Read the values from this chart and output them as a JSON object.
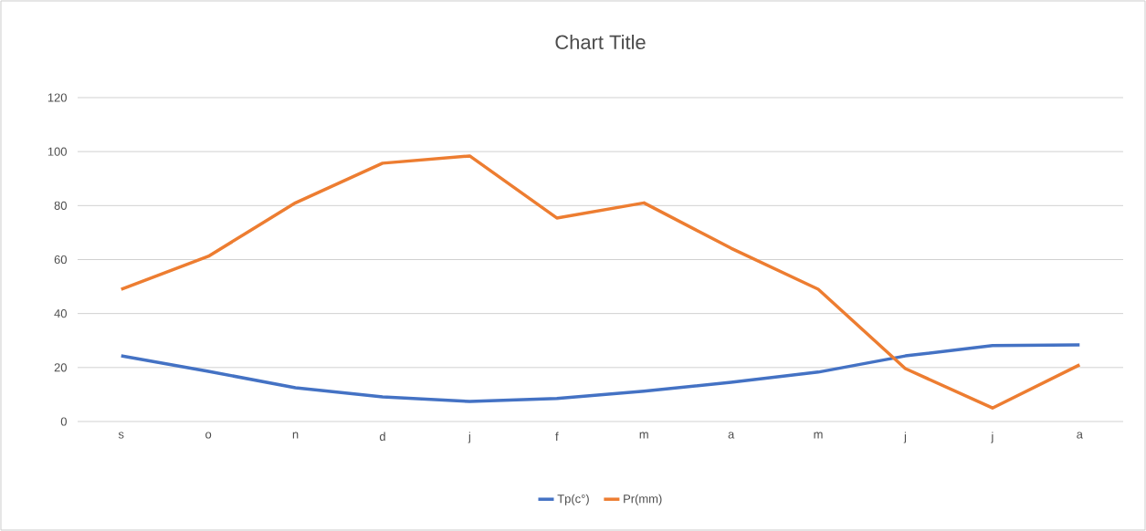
{
  "chart_data": {
    "type": "line",
    "title": "Chart Title",
    "categories": [
      "s",
      "o",
      "n",
      "d",
      "j",
      "f",
      "m",
      "a",
      "m",
      "j",
      "j",
      "a"
    ],
    "series": [
      {
        "name": "Tp(c°)",
        "color": "#4472c4",
        "values": [
          24.3,
          18.6,
          12.5,
          9.1,
          7.4,
          8.5,
          11.2,
          14.5,
          18.3,
          24.3,
          28.1,
          28.4
        ]
      },
      {
        "name": "Pr(mm)",
        "color": "#ed7d31",
        "values": [
          49,
          61.2,
          81,
          95.7,
          98.4,
          75.4,
          81,
          64.2,
          49,
          19.6,
          5,
          21
        ]
      }
    ],
    "ylim": [
      0,
      120
    ],
    "yticks": [
      0,
      20,
      40,
      60,
      80,
      100,
      120
    ],
    "grid": "y",
    "legend": "bottom",
    "marker": "none",
    "line_style": "solid"
  }
}
